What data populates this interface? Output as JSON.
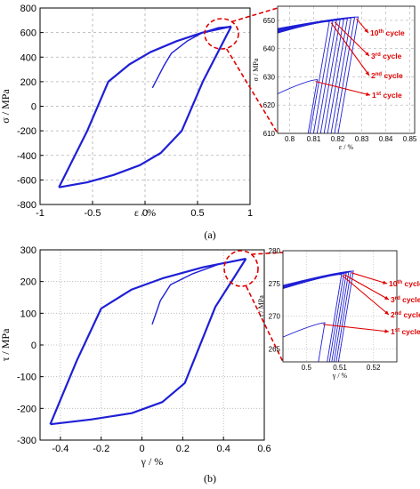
{
  "chart_data": [
    {
      "panel_label": "(a)",
      "main": {
        "type": "line",
        "xlabel": "ε / %",
        "ylabel": "σ / MPa",
        "xlim": [
          -1,
          1
        ],
        "ylim": [
          -800,
          800
        ],
        "xticks": [
          -1,
          -0.5,
          0,
          0.5,
          1
        ],
        "yticks": [
          -800,
          -600,
          -400,
          -200,
          0,
          200,
          400,
          600,
          800
        ],
        "grid": "dashed",
        "series": [
          {
            "values": [
              [
                0.07,
                150
              ],
              [
                0.18,
                330
              ],
              [
                0.25,
                430
              ],
              [
                0.4,
                530
              ],
              [
                0.55,
                600
              ],
              [
                0.7,
                640
              ],
              [
                0.82,
                650
              ]
            ]
          },
          {
            "values": [
              [
                0.82,
                650
              ],
              [
                0.55,
                200
              ],
              [
                0.35,
                -200
              ],
              [
                0.15,
                -380
              ],
              [
                -0.05,
                -480
              ],
              [
                -0.3,
                -560
              ],
              [
                -0.55,
                -620
              ],
              [
                -0.82,
                -660
              ]
            ]
          },
          {
            "values": [
              [
                -0.82,
                -660
              ],
              [
                -0.55,
                -200
              ],
              [
                -0.35,
                200
              ],
              [
                -0.15,
                340
              ],
              [
                0.05,
                440
              ],
              [
                0.3,
                530
              ],
              [
                0.55,
                600
              ],
              [
                0.82,
                650
              ]
            ]
          }
        ]
      },
      "inset": {
        "type": "line",
        "xlabel": "ε / %",
        "ylabel": "σ / MPa",
        "xlim": [
          0.795,
          0.852
        ],
        "ylim": [
          610,
          655
        ],
        "xticks": [
          0.8,
          0.81,
          0.82,
          0.83,
          0.84,
          0.85
        ],
        "yticks": [
          610,
          620,
          630,
          640,
          650
        ],
        "cycles": [
          {
            "peak": [
              0.8115,
              629
            ],
            "start": 624
          },
          {
            "peak": [
              0.8165,
              649.6
            ],
            "start": 645.5
          },
          {
            "peak": [
              0.818,
              649.8
            ],
            "start": 645.7
          },
          {
            "peak": [
              0.8195,
              650.0
            ],
            "start": 645.9
          },
          {
            "peak": [
              0.821,
              650.2
            ],
            "start": 646.1
          },
          {
            "peak": [
              0.8225,
              650.4
            ],
            "start": 646.3
          },
          {
            "peak": [
              0.824,
              650.6
            ],
            "start": 646.5
          },
          {
            "peak": [
              0.8255,
              650.8
            ],
            "start": 646.7
          },
          {
            "peak": [
              0.827,
              651.0
            ],
            "start": 646.9
          },
          {
            "peak": [
              0.8285,
              651.2
            ],
            "start": 647.1
          }
        ],
        "annotations": [
          {
            "num": "10",
            "sup": "th",
            "text": " cycle"
          },
          {
            "num": "3",
            "sup": "rd",
            "text": " cycle"
          },
          {
            "num": "2",
            "sup": "nd",
            "text": " cycle"
          },
          {
            "num": "1",
            "sup": "st",
            "text": " cycle"
          }
        ]
      }
    },
    {
      "panel_label": "(b)",
      "main": {
        "type": "line",
        "xlabel": "γ / %",
        "ylabel": "τ / MPa",
        "xlim": [
          -0.5,
          0.6
        ],
        "ylim": [
          -300,
          300
        ],
        "xticks": [
          -0.4,
          -0.2,
          0,
          0.2,
          0.4,
          0.6
        ],
        "yticks": [
          -300,
          -200,
          -100,
          0,
          100,
          200,
          300
        ],
        "grid": "dotted",
        "series": [
          {
            "values": [
              [
                0.05,
                65
              ],
              [
                0.09,
                140
              ],
              [
                0.14,
                190
              ],
              [
                0.25,
                225
              ],
              [
                0.38,
                255
              ],
              [
                0.51,
                272
              ]
            ]
          },
          {
            "values": [
              [
                0.51,
                272
              ],
              [
                0.36,
                120
              ],
              [
                0.21,
                -120
              ],
              [
                0.1,
                -180
              ],
              [
                -0.05,
                -215
              ],
              [
                -0.25,
                -235
              ],
              [
                -0.45,
                -250
              ]
            ]
          },
          {
            "values": [
              [
                -0.45,
                -250
              ],
              [
                -0.32,
                -50
              ],
              [
                -0.2,
                115
              ],
              [
                -0.05,
                175
              ],
              [
                0.1,
                210
              ],
              [
                0.3,
                245
              ],
              [
                0.51,
                272
              ]
            ]
          }
        ]
      },
      "inset": {
        "type": "line",
        "xlabel": "γ / %",
        "ylabel": "τ / MPa",
        "xlim": [
          0.493,
          0.527
        ],
        "ylim": [
          263,
          280
        ],
        "xticks": [
          0.5,
          0.51,
          0.52
        ],
        "yticks": [
          265,
          270,
          275,
          280
        ],
        "cycles": [
          {
            "peak": [
              0.5055,
              269.0
            ],
            "start": 266.8
          },
          {
            "peak": [
              0.5105,
              276.4
            ],
            "start": 274.2
          },
          {
            "peak": [
              0.5112,
              276.5
            ],
            "start": 274.3
          },
          {
            "peak": [
              0.5119,
              276.6
            ],
            "start": 274.4
          },
          {
            "peak": [
              0.5126,
              276.7
            ],
            "start": 274.5
          },
          {
            "peak": [
              0.5133,
              276.8
            ],
            "start": 274.6
          },
          {
            "peak": [
              0.514,
              276.9
            ],
            "start": 274.7
          }
        ],
        "annotations": [
          {
            "num": "10",
            "sup": "th",
            "text": " cycle"
          },
          {
            "num": "3",
            "sup": "rd",
            "text": " cycle"
          },
          {
            "num": "2",
            "sup": "nd",
            "text": " cycle"
          },
          {
            "num": "1",
            "sup": "st",
            "text": " cycle"
          }
        ]
      }
    }
  ]
}
